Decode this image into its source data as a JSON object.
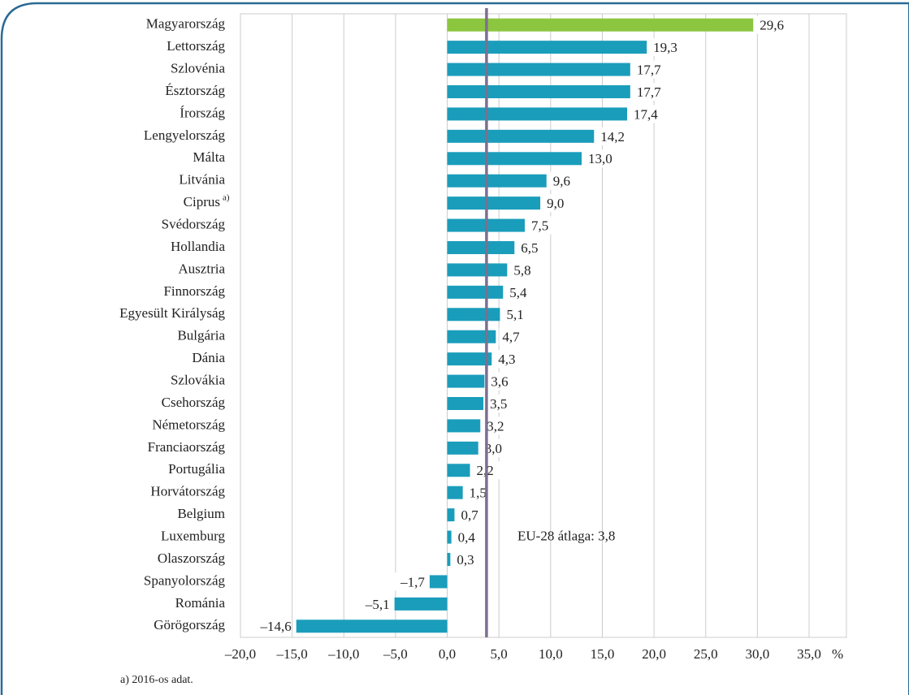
{
  "chart_data": {
    "type": "barh",
    "categories": [
      "Magyarország",
      "Lettország",
      "Szlovénia",
      "Észtország",
      "Írország",
      "Lengyelország",
      "Málta",
      "Litvánia",
      "Ciprus",
      "Svédország",
      "Hollandia",
      "Ausztria",
      "Finnország",
      "Egyesült Királyság",
      "Bulgária",
      "Dánia",
      "Szlovákia",
      "Csehország",
      "Németország",
      "Franciaország",
      "Portugália",
      "Horvátország",
      "Belgium",
      "Luxemburg",
      "Olaszország",
      "Spanyolország",
      "Románia",
      "Görögország"
    ],
    "category_notes": {
      "8": "a)"
    },
    "values": [
      29.6,
      19.3,
      17.7,
      17.7,
      17.4,
      14.2,
      13.0,
      9.6,
      9.0,
      7.5,
      6.5,
      5.8,
      5.4,
      5.1,
      4.7,
      4.3,
      3.6,
      3.5,
      3.2,
      3.0,
      2.2,
      1.5,
      0.7,
      0.4,
      0.3,
      -1.7,
      -5.1,
      -14.6
    ],
    "value_labels": [
      "29,6",
      "19,3",
      "17,7",
      "17,7",
      "17,4",
      "14,2",
      "13,0",
      "9,6",
      "9,0",
      "7,5",
      "6,5",
      "5,8",
      "5,4",
      "5,1",
      "4,7",
      "4,3",
      "3,6",
      "3,5",
      "3,2",
      "3,0",
      "2,2",
      "1,5",
      "0,7",
      "0,4",
      "0,3",
      "–1,7",
      "–5,1",
      "–14,6"
    ],
    "colors": [
      "#8cc63f",
      "#1a9dbb",
      "#1a9dbb",
      "#1a9dbb",
      "#1a9dbb",
      "#1a9dbb",
      "#1a9dbb",
      "#1a9dbb",
      "#1a9dbb",
      "#1a9dbb",
      "#1a9dbb",
      "#1a9dbb",
      "#1a9dbb",
      "#1a9dbb",
      "#1a9dbb",
      "#1a9dbb",
      "#1a9dbb",
      "#1a9dbb",
      "#1a9dbb",
      "#1a9dbb",
      "#1a9dbb",
      "#1a9dbb",
      "#1a9dbb",
      "#1a9dbb",
      "#1a9dbb",
      "#1a9dbb",
      "#1a9dbb",
      "#1a9dbb"
    ],
    "xlim": [
      -20,
      35
    ],
    "xticks": [
      {
        "value": -20,
        "label": "–20,0"
      },
      {
        "value": -15,
        "label": "–15,0"
      },
      {
        "value": -10,
        "label": "–10,0"
      },
      {
        "value": -5,
        "label": "–5,0"
      },
      {
        "value": 0,
        "label": "0,0"
      },
      {
        "value": 5,
        "label": "5,0"
      },
      {
        "value": 10,
        "label": "10,0"
      },
      {
        "value": 15,
        "label": "15,0"
      },
      {
        "value": 20,
        "label": "20,0"
      },
      {
        "value": 25,
        "label": "25,0"
      },
      {
        "value": 30,
        "label": "30,0"
      },
      {
        "value": 35,
        "label": "35,0"
      }
    ],
    "x_unit": "%",
    "grid": true,
    "reference_line": {
      "value": 3.8,
      "label": "EU-28 átlaga: 3,8",
      "color": "#7b7090"
    },
    "footnote": "a) 2016-os adat."
  }
}
